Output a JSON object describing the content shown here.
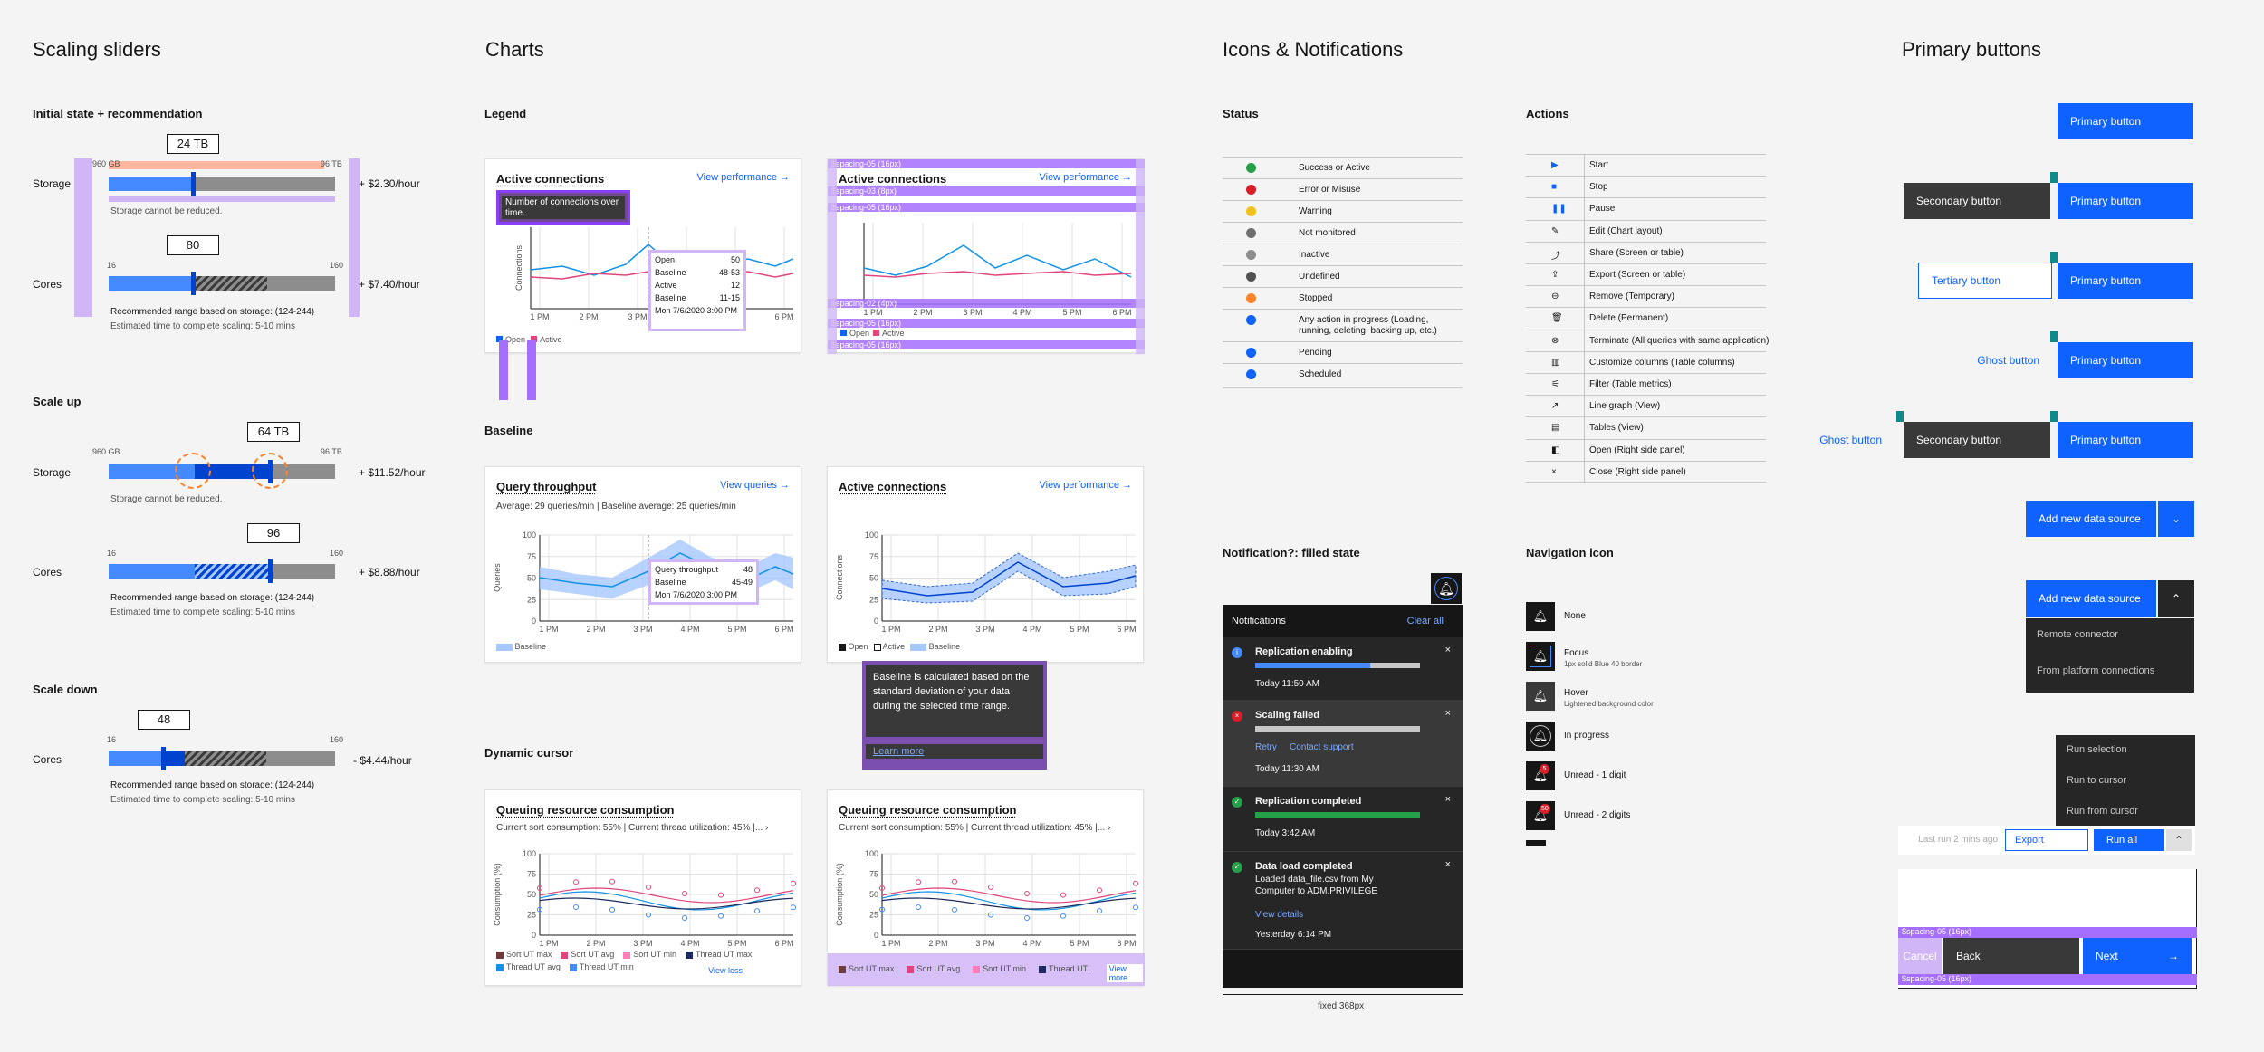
{
  "sections": {
    "sliders": "Scaling sliders",
    "charts": "Charts",
    "icons": "Icons & Notifications",
    "buttons": "Primary buttons"
  },
  "sliders": {
    "initial": {
      "title": "Initial state + recommendation",
      "storage_label": "Storage",
      "cores_label": "Cores",
      "storage_value": "24 TB",
      "storage_min": "960 GB",
      "storage_max": "96 TB",
      "storage_price": "+ $2.30/hour",
      "storage_note": "Storage cannot be reduced.",
      "cores_value": "80",
      "cores_min": "16",
      "cores_max": "160",
      "cores_price": "+ $7.40/hour",
      "rec": "Recommended range based on storage: (124-244)",
      "eta": "Estimated time to complete scaling: 5-10 mins"
    },
    "scale_up": {
      "title": "Scale up",
      "storage_label": "Storage",
      "cores_label": "Cores",
      "storage_value": "64 TB",
      "storage_min": "960 GB",
      "storage_max": "96 TB",
      "storage_price": "+ $11.52/hour",
      "storage_note": "Storage cannot be reduced.",
      "cores_value": "96",
      "cores_min": "16",
      "cores_max": "160",
      "cores_price": "+ $8.88/hour",
      "rec": "Recommended range based on storage: (124-244)",
      "eta": "Estimated time to complete scaling: 5-10 mins"
    },
    "scale_down": {
      "title": "Scale down",
      "cores_label": "Cores",
      "cores_value": "48",
      "cores_min": "16",
      "cores_max": "160",
      "cores_price": "- $4.44/hour",
      "rec": "Recommended range based on storage: (124-244)",
      "eta": "Estimated time to complete scaling: 5-10 mins"
    }
  },
  "charts": {
    "legend_title": "Legend",
    "baseline_title": "Baseline",
    "cursor_title": "Dynamic cursor",
    "x_ticks": [
      "1 PM",
      "2 PM",
      "3 PM",
      "4 PM",
      "5 PM",
      "6 PM"
    ],
    "active": {
      "title": "Active connections",
      "link": "View performance",
      "ylabel": "Connections",
      "tooltip": "Number of connections over time.",
      "legend": [
        "Open",
        "Active"
      ],
      "hover": {
        "open_label": "Open",
        "open_value": "50",
        "base_label": "Baseline",
        "base_value": "48-53",
        "active_label": "Active",
        "active_value": "12",
        "base2_label": "Baseline",
        "base2_value": "11-15",
        "date": "Mon 7/6/2020 3:00 PM"
      }
    },
    "spacing": {
      "s05": "$spacing-05 (16px)",
      "s03": "$spacing-03 (8px)",
      "s02": "$spacing-02 (4px)",
      "s07": "$spacing-07 (32px)"
    },
    "query": {
      "title": "Query throughput",
      "link": "View queries",
      "subtitle": "Average: 29 queries/min | Baseline average: 25 queries/min",
      "ylabel": "Queries",
      "y_ticks": [
        "100",
        "75",
        "50",
        "25",
        "0"
      ],
      "legend": "Baseline",
      "hover": {
        "qt_label": "Query throughput",
        "qt_value": "48",
        "base_label": "Baseline",
        "base_value": "45-49",
        "date": "Mon 7/6/2020 3:00 PM"
      }
    },
    "active2": {
      "title": "Active connections",
      "link": "View performance",
      "ylabel": "Connections",
      "y_ticks": [
        "100",
        "75",
        "50",
        "25",
        "0"
      ],
      "legend": [
        "Open",
        "Active",
        "Baseline"
      ],
      "tooltip": "Baseline is calculated based on the standard deviation of your data during the selected time range.",
      "tooltip_link": "Learn more"
    },
    "queuing": {
      "title": "Queuing resource consumption",
      "subtitle": "Current sort consumption: 55% | Current thread utilization: 45% |...",
      "ylabel": "Consumption (%)",
      "y_ticks": [
        "100",
        "75",
        "50",
        "25",
        "0"
      ],
      "legend": [
        "Sort UT max",
        "Sort UT avg",
        "Sort UT min",
        "Thread UT max",
        "Thread UT avg",
        "Thread UT min"
      ],
      "legend_colors": [
        "#6f3a3a",
        "#e0457b",
        "#ff7eb6",
        "#1c2a5e",
        "#1192e8",
        "#4589ff"
      ],
      "view_less": "View less",
      "legend_short": [
        "Sort UT max",
        "Sort UT avg",
        "Sort UT min",
        "Thread UT..."
      ],
      "view_more": "View more"
    }
  },
  "status": {
    "title": "Status",
    "items": [
      "Success or Active",
      "Error or Misuse",
      "Warning",
      "Not monitored",
      "Inactive",
      "Undefined",
      "Stopped",
      "Any action in progress (Loading, running, deleting, backing up, etc.)",
      "Pending",
      "Scheduled"
    ],
    "colors": [
      "#24a148",
      "#da1e28",
      "#f1c21b",
      "#6f6f6f",
      "#8d8d8d",
      "#525252",
      "#ff832b",
      "#0f62fe",
      "#0f62fe",
      "#0f62fe"
    ]
  },
  "actions": {
    "title": "Actions",
    "items": [
      "Start",
      "Stop",
      "Pause",
      "Edit (Chart layout)",
      "Share (Screen or table)",
      "Export (Screen or table)",
      "Remove (Temporary)",
      "Delete (Permanent)",
      "Terminate (All queries with same application)",
      "Customize columns (Table columns)",
      "Filter (Table metrics)",
      "Line graph (View)",
      "Tables (View)",
      "Open (Right side panel)",
      "Close (Right side panel)"
    ]
  },
  "notifications": {
    "title": "Notification?:  filled state",
    "panel_title": "Notifications",
    "clear_all": "Clear all",
    "items": [
      {
        "title": "Replication enabling",
        "time": "Today 11:50 AM"
      },
      {
        "title": "Scaling failed",
        "retry": "Retry",
        "support": "Contact support",
        "time": "Today 11:30 AM"
      },
      {
        "title": "Replication completed",
        "time": "Today 3:42 AM"
      },
      {
        "title": "Data load completed",
        "body": "Loaded data_file.csv from My Computer to ADM.PRIVILEGE",
        "link": "View details",
        "time": "Yesterday 6:14 PM"
      }
    ],
    "caption": "fixed 368px"
  },
  "nav_icon": {
    "title": "Navigation icon",
    "items": [
      {
        "label": "None"
      },
      {
        "label": "Focus",
        "sub": "1px solid Blue 40 border"
      },
      {
        "label": "Hover",
        "sub": "Lightened background color"
      },
      {
        "label": "In progress"
      },
      {
        "label": "Unread - 1 digit",
        "badge": "5"
      },
      {
        "label": "Unread - 2 digits",
        "badge": "50"
      }
    ]
  },
  "buttons": {
    "primary": "Primary button",
    "secondary": "Secondary button",
    "tertiary": "Tertiary button",
    "ghost": "Ghost button",
    "add_source": "Add new data source",
    "menu": [
      "Remote connector",
      "From platform connections"
    ],
    "run_menu": [
      "Run selection",
      "Run to cursor",
      "Run from cursor"
    ],
    "last_run": "Last run 2 mins ago",
    "export": "Export",
    "run_all": "Run all",
    "cancel": "Cancel",
    "back": "Back",
    "next": "Next",
    "spacing": "$spacing-05 (16px)"
  }
}
